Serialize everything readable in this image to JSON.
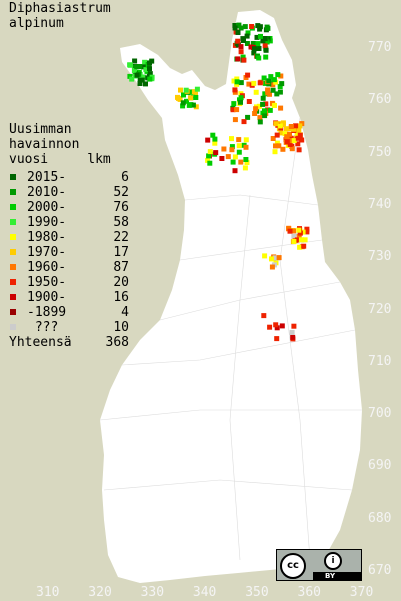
{
  "map": {
    "species": "Diphasiastrum\nalpinum",
    "legend_title": "Uusimman\nhavainnon\nvuosi     lkm",
    "legend": [
      {
        "label": "2015-",
        "count": "6",
        "color": "#006600"
      },
      {
        "label": "2010-",
        "count": "52",
        "color": "#009900"
      },
      {
        "label": "2000-",
        "count": "76",
        "color": "#00cc00"
      },
      {
        "label": "1990-",
        "count": "58",
        "color": "#33ee33"
      },
      {
        "label": "1980-",
        "count": "22",
        "color": "#ffff00"
      },
      {
        "label": "1970-",
        "count": "17",
        "color": "#ffcc00"
      },
      {
        "label": "1960-",
        "count": "87",
        "color": "#ff7700"
      },
      {
        "label": "1950-",
        "count": "20",
        "color": "#ee2200"
      },
      {
        "label": "1900-",
        "count": "16",
        "color": "#cc0000"
      },
      {
        "label": "-1899",
        "count": "4",
        "color": "#990000"
      },
      {
        "label": " ???",
        "count": "10",
        "color": "#cccccc"
      }
    ],
    "total_label": "Yhteensä",
    "total_count": "368",
    "y_ticks": [
      "770",
      "760",
      "750",
      "740",
      "730",
      "720",
      "710",
      "700",
      "690",
      "680",
      "670"
    ],
    "x_ticks": [
      "310",
      "320",
      "330",
      "340",
      "350",
      "360",
      "370"
    ],
    "license_icons": [
      "cc-icon",
      "by-icon"
    ],
    "license_text": "BY"
  }
}
